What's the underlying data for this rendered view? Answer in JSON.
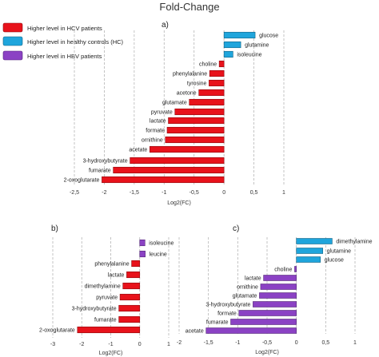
{
  "figure_title": "Fold-Change",
  "legend": [
    {
      "label": "Higher level in HCV patients",
      "color": "#e8121b"
    },
    {
      "label": "Higher level in healthy controls (HC)",
      "color": "#1fa5dc"
    },
    {
      "label": "Higher level in HBV patients",
      "color": "#8b42c4"
    }
  ],
  "chart_data": [
    {
      "type": "bar",
      "orientation": "horizontal",
      "panel": "a)",
      "xlabel": "Log2(FC)",
      "xlim": [
        -2.5,
        1.0
      ],
      "xticks": [
        -2.5,
        -2,
        -1.5,
        -1,
        -0.5,
        0,
        0.5,
        1
      ],
      "tick_labels": [
        "-2,5",
        "-2",
        "-1,5",
        "-1",
        "-0,5",
        "0",
        "0,5",
        "1"
      ],
      "grid": "vertical dashed",
      "categories": [
        "glucose",
        "glutamine",
        "isoleucine",
        "choline",
        "phenylalanine",
        "tyrosine",
        "acetone",
        "glutamate",
        "pyruvate",
        "lactate",
        "formate",
        "ornithine",
        "acetate",
        "3-hydroxybutyrate",
        "fumarate",
        "2-oxoglutarate"
      ],
      "values": [
        0.52,
        0.28,
        0.15,
        -0.08,
        -0.24,
        -0.25,
        -0.42,
        -0.58,
        -0.82,
        -0.93,
        -0.95,
        -0.98,
        -1.24,
        -1.57,
        -1.85,
        -2.04
      ],
      "colors": [
        "#1fa5dc",
        "#1fa5dc",
        "#1fa5dc",
        "#e8121b",
        "#e8121b",
        "#e8121b",
        "#e8121b",
        "#e8121b",
        "#e8121b",
        "#e8121b",
        "#e8121b",
        "#e8121b",
        "#e8121b",
        "#e8121b",
        "#e8121b",
        "#e8121b"
      ]
    },
    {
      "type": "bar",
      "orientation": "horizontal",
      "panel": "b)",
      "xlabel": "Log2(FC)",
      "xlim": [
        -3,
        1
      ],
      "xticks": [
        -3,
        -2,
        -1,
        0,
        1
      ],
      "tick_labels": [
        "-3",
        "-2",
        "-1",
        "0",
        "1"
      ],
      "grid": "vertical dashed",
      "categories": [
        "isoleucine",
        "leucine",
        "phenylalanine",
        "lactate",
        "dimethylamine",
        "pyruvate",
        "3-hydroxybutyrate",
        "fumarate",
        "2-oxoglutarate"
      ],
      "values": [
        0.18,
        0.19,
        -0.28,
        -0.45,
        -0.58,
        -0.68,
        -0.72,
        -0.72,
        -2.15
      ],
      "colors": [
        "#8b42c4",
        "#8b42c4",
        "#e8121b",
        "#e8121b",
        "#e8121b",
        "#e8121b",
        "#e8121b",
        "#e8121b",
        "#e8121b"
      ]
    },
    {
      "type": "bar",
      "orientation": "horizontal",
      "panel": "c)",
      "xlabel": "Log2(FC)",
      "xlim": [
        -2,
        1
      ],
      "xticks": [
        -2,
        -1.5,
        -1,
        -0.5,
        0,
        0.5,
        1
      ],
      "tick_labels": [
        "-2",
        "-1,5",
        "-1",
        "-0,5",
        "0",
        "0,5",
        "1"
      ],
      "grid": "vertical dashed",
      "categories": [
        "dimethylamine",
        "glutamine",
        "glucose",
        "choline",
        "lactate",
        "ornithine",
        "glutamate",
        "3-hydroxybutyrate",
        "formate",
        "fumarate",
        "acetate"
      ],
      "values": [
        0.61,
        0.45,
        0.41,
        -0.03,
        -0.56,
        -0.61,
        -0.63,
        -0.74,
        -0.98,
        -1.12,
        -1.54
      ],
      "colors": [
        "#1fa5dc",
        "#1fa5dc",
        "#1fa5dc",
        "#8b42c4",
        "#8b42c4",
        "#8b42c4",
        "#8b42c4",
        "#8b42c4",
        "#8b42c4",
        "#8b42c4",
        "#8b42c4"
      ]
    }
  ]
}
